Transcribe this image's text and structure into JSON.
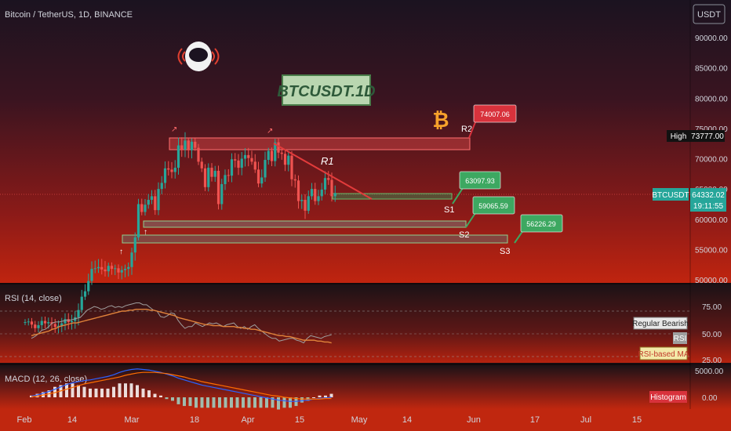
{
  "header": {
    "symbol": "Bitcoin / TetherUS, 1D, BINANCE",
    "currency_button": "USDT"
  },
  "watermark": {
    "text": "BTCUSDT.1D"
  },
  "colors": {
    "up": "#26a69a",
    "down": "#ef5350",
    "resistance_line": "#e23b3b",
    "rsi_line": "#9e9e9e",
    "rsi_ma": "#e0823a",
    "macd_line": "#2962ff",
    "signal_line": "#ff6d00",
    "label_green": "#3da861",
    "label_red": "#d8323c",
    "bitcoin": "#f7a22b"
  },
  "price_axis": {
    "ticks": [
      "90000.00",
      "85000.00",
      "80000.00",
      "75000.00",
      "70000.00",
      "65000.00",
      "60000.00",
      "55000.00",
      "50000.00"
    ],
    "high_label": "High",
    "high_value": "73777.00",
    "symbol_tag": "BTCUSDT",
    "last_price": "64332.02",
    "countdown": "19:11:55"
  },
  "annotations": {
    "r2_label": "R2",
    "r1_label": "R1",
    "s1_label": "S1",
    "s2_label": "S2",
    "s3_label": "S3",
    "r2_price": "74007.06",
    "s1_price": "63097.93",
    "s2_price": "59065.59",
    "s3_price": "56226.29"
  },
  "rsi_panel": {
    "title": "RSI (14, close)",
    "ticks": [
      "75.00",
      "50.00",
      "25.00"
    ],
    "tag_bearish": "Regular Bearish",
    "tag_rsi": "RSI",
    "tag_ma": "RSI-based MA"
  },
  "macd_panel": {
    "title": "MACD (12, 26, close)",
    "ticks": [
      "5000.00",
      "0.00"
    ],
    "tag_hist": "Histogram"
  },
  "time_axis": {
    "labels": [
      "Feb",
      "14",
      "Mar",
      "18",
      "Apr",
      "15",
      "May",
      "14",
      "Jun",
      "17",
      "Jul",
      "15"
    ]
  },
  "chart_data": {
    "type": "candlestick",
    "title": "Bitcoin / TetherUS, 1D, BINANCE",
    "ylim": [
      48000,
      93000
    ],
    "resistance_levels": [
      {
        "name": "R2",
        "value": 74007.06
      }
    ],
    "support_levels": [
      {
        "name": "S1",
        "value": 63097.93
      },
      {
        "name": "S2",
        "value": 59065.59
      },
      {
        "name": "S3",
        "value": 56226.29
      }
    ],
    "high": 73777.0,
    "last": 64332.02,
    "close_series": [
      43000,
      43100,
      42600,
      42000,
      42500,
      43200,
      42800,
      43000,
      42700,
      42200,
      42400,
      42800,
      43500,
      43000,
      43200,
      43800,
      45000,
      47200,
      48100,
      49800,
      51800,
      51900,
      52100,
      51700,
      51400,
      52300,
      51800,
      51900,
      51200,
      51600,
      51800,
      52100,
      54500,
      57000,
      62500,
      61200,
      62400,
      63200,
      63800,
      61500,
      65000,
      66000,
      68400,
      68200,
      67800,
      68500,
      72200,
      71500,
      73000,
      71400,
      72800,
      71800,
      69500,
      68400,
      65300,
      68500,
      67000,
      68000,
      62500,
      65800,
      67300,
      67200,
      69900,
      69700,
      68500,
      70000,
      70600,
      70100,
      69500,
      68200,
      65900,
      66900,
      69800,
      71300,
      69600,
      72700,
      71000,
      70800,
      69000,
      70500,
      66600,
      66400,
      63000,
      63200,
      61400,
      63800,
      65000,
      63000,
      63800,
      64900,
      66800,
      66500,
      63800,
      64330
    ],
    "rsi": [
      45,
      47,
      50,
      54,
      55,
      58,
      62,
      63,
      63,
      64,
      65,
      65,
      66,
      67,
      68,
      72,
      76,
      78,
      80,
      79,
      77,
      78,
      80,
      81,
      79,
      80,
      79,
      81,
      82,
      83,
      84,
      84,
      82,
      82,
      79,
      76,
      75,
      69,
      68,
      70,
      73,
      72,
      65,
      60,
      56,
      58,
      58,
      62,
      60,
      58,
      60,
      62,
      61,
      62,
      60,
      58,
      60,
      61,
      62,
      58,
      56,
      58,
      55,
      58,
      60,
      56,
      53,
      50,
      47,
      45,
      45,
      42,
      43,
      44,
      45,
      45,
      43,
      42,
      40,
      45,
      48,
      47,
      46,
      45,
      47,
      48,
      49
    ],
    "rsi_ma": [
      48,
      49,
      50,
      51,
      52,
      53,
      55,
      56,
      58,
      59,
      60,
      61,
      62,
      62,
      63,
      64,
      65,
      66,
      67,
      68,
      69,
      70,
      71,
      72,
      73,
      74,
      75,
      75,
      76,
      76,
      77,
      77,
      77,
      77,
      76,
      76,
      75,
      74,
      73,
      72,
      71,
      70,
      68,
      67,
      66,
      65,
      64,
      63,
      62,
      61,
      60,
      60,
      59,
      59,
      59,
      58,
      58,
      58,
      58,
      57,
      57,
      56,
      56,
      55,
      55,
      54,
      53,
      52,
      51,
      50,
      49,
      48,
      48,
      47,
      47,
      46,
      45,
      44,
      43,
      43,
      43,
      43,
      42,
      42,
      41,
      41,
      40
    ],
    "macd": [
      200,
      400,
      700,
      1000,
      1400,
      1800,
      2200,
      2500,
      2700,
      2900,
      3000,
      3200,
      3400,
      3600,
      3900,
      4300,
      4600,
      4800,
      4900,
      4800,
      4700,
      4500,
      4300,
      4000,
      3700,
      3300,
      3000,
      2700,
      2400,
      2100,
      1900,
      1700,
      1500,
      1300,
      1100,
      900,
      700,
      500,
      300,
      100,
      -100,
      -300,
      -500,
      -600,
      -700,
      -700,
      -600,
      -500,
      -300,
      -200,
      -100,
      0
    ],
    "macd_signal": [
      100,
      200,
      400,
      600,
      800,
      1100,
      1400,
      1700,
      2000,
      2300,
      2500,
      2700,
      2900,
      3100,
      3300,
      3500,
      3800,
      4000,
      4200,
      4300,
      4300,
      4300,
      4200,
      4100,
      3900,
      3700,
      3500,
      3200,
      3000,
      2700,
      2500,
      2300,
      2100,
      1900,
      1700,
      1500,
      1300,
      1100,
      900,
      700,
      500,
      300,
      200,
      0,
      -100,
      -200,
      -300,
      -300,
      -300,
      -300,
      -200,
      -200
    ],
    "time_labels": [
      "Feb",
      "14",
      "Mar",
      "18",
      "Apr",
      "15",
      "May",
      "14",
      "Jun",
      "17",
      "Jul",
      "15"
    ],
    "panels": {
      "rsi_ticks": [
        75,
        50,
        25
      ],
      "macd_ticks": [
        5000,
        0
      ]
    }
  }
}
